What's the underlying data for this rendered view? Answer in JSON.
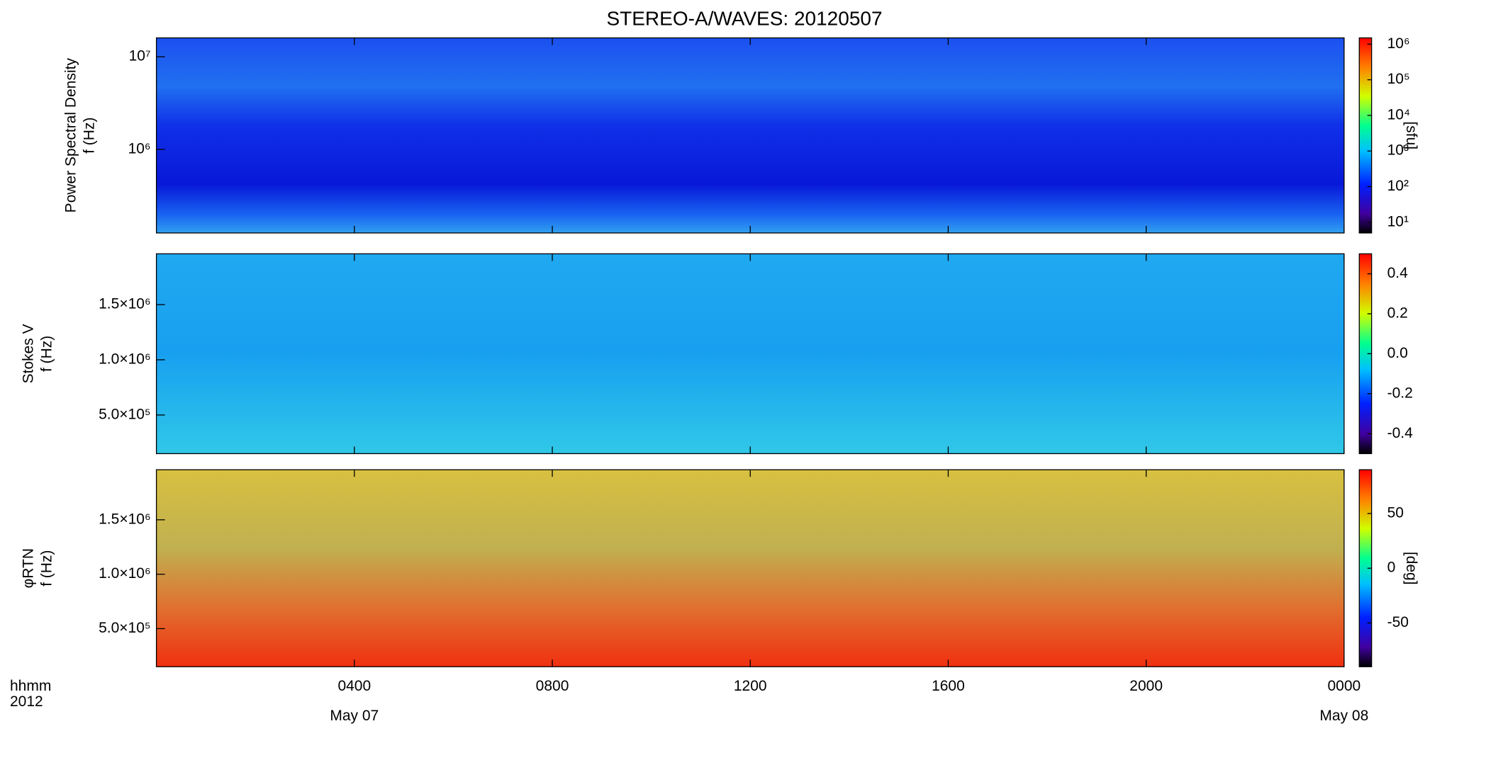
{
  "title": "STEREO-A/WAVES: 20120507",
  "chart_data": [
    {
      "type": "spectrogram",
      "ylabel": [
        "Power Spectral Density",
        "f (Hz)"
      ],
      "ylog": true,
      "ylim": [
        125000,
        16000000
      ],
      "yticks": [
        {
          "value": 1000000,
          "label": "10⁶"
        },
        {
          "value": 10000000,
          "label": "10⁷"
        }
      ],
      "colorbar": {
        "label": "[sfu]",
        "log": true,
        "lim": [
          5,
          1500000
        ],
        "ticks": [
          {
            "value": 10,
            "label": "10¹"
          },
          {
            "value": 100,
            "label": "10²"
          },
          {
            "value": 1000,
            "label": "10³"
          },
          {
            "value": 10000,
            "label": "10⁴"
          },
          {
            "value": 100000,
            "label": "10⁵"
          },
          {
            "value": 1000000,
            "label": "10⁶"
          }
        ]
      }
    },
    {
      "type": "spectrogram",
      "ylabel": [
        "Stokes V",
        "f (Hz)"
      ],
      "ylog": false,
      "ylim": [
        150000,
        1960000
      ],
      "yticks": [
        {
          "value": 500000,
          "label": "5.0×10⁵"
        },
        {
          "value": 1000000,
          "label": "1.0×10⁶"
        },
        {
          "value": 1500000,
          "label": "1.5×10⁶"
        }
      ],
      "colorbar": {
        "log": false,
        "lim": [
          -0.5,
          0.5
        ],
        "ticks": [
          -0.4,
          -0.2,
          {
            "value": 0,
            "label": "0.0"
          },
          0.2,
          0.4
        ]
      }
    },
    {
      "type": "spectrogram",
      "ylabel": [
        "φRTN",
        "f (Hz)"
      ],
      "ylog": false,
      "ylim": [
        150000,
        1960000
      ],
      "yticks": [
        {
          "value": 500000,
          "label": "5.0×10⁵"
        },
        {
          "value": 1000000,
          "label": "1.0×10⁶"
        },
        {
          "value": 1500000,
          "label": "1.5×10⁶"
        }
      ],
      "colorbar": {
        "label": "[deg]",
        "log": false,
        "lim": [
          -90,
          90
        ],
        "ticks": [
          -50,
          0,
          50
        ]
      },
      "xlabel": [
        "hhmm",
        "2012"
      ],
      "xlim": [
        0,
        24
      ],
      "xticks": [
        {
          "value": 4,
          "label": "0400"
        },
        {
          "value": 8,
          "label": "0800"
        },
        {
          "value": 12,
          "label": "1200"
        },
        {
          "value": 16,
          "label": "1600"
        },
        {
          "value": 20,
          "label": "2000"
        },
        {
          "value": 24,
          "label": "0000"
        }
      ],
      "xdates": [
        {
          "value": 4,
          "label": "May 07"
        },
        {
          "value": 24,
          "label": "May 08"
        }
      ]
    }
  ]
}
